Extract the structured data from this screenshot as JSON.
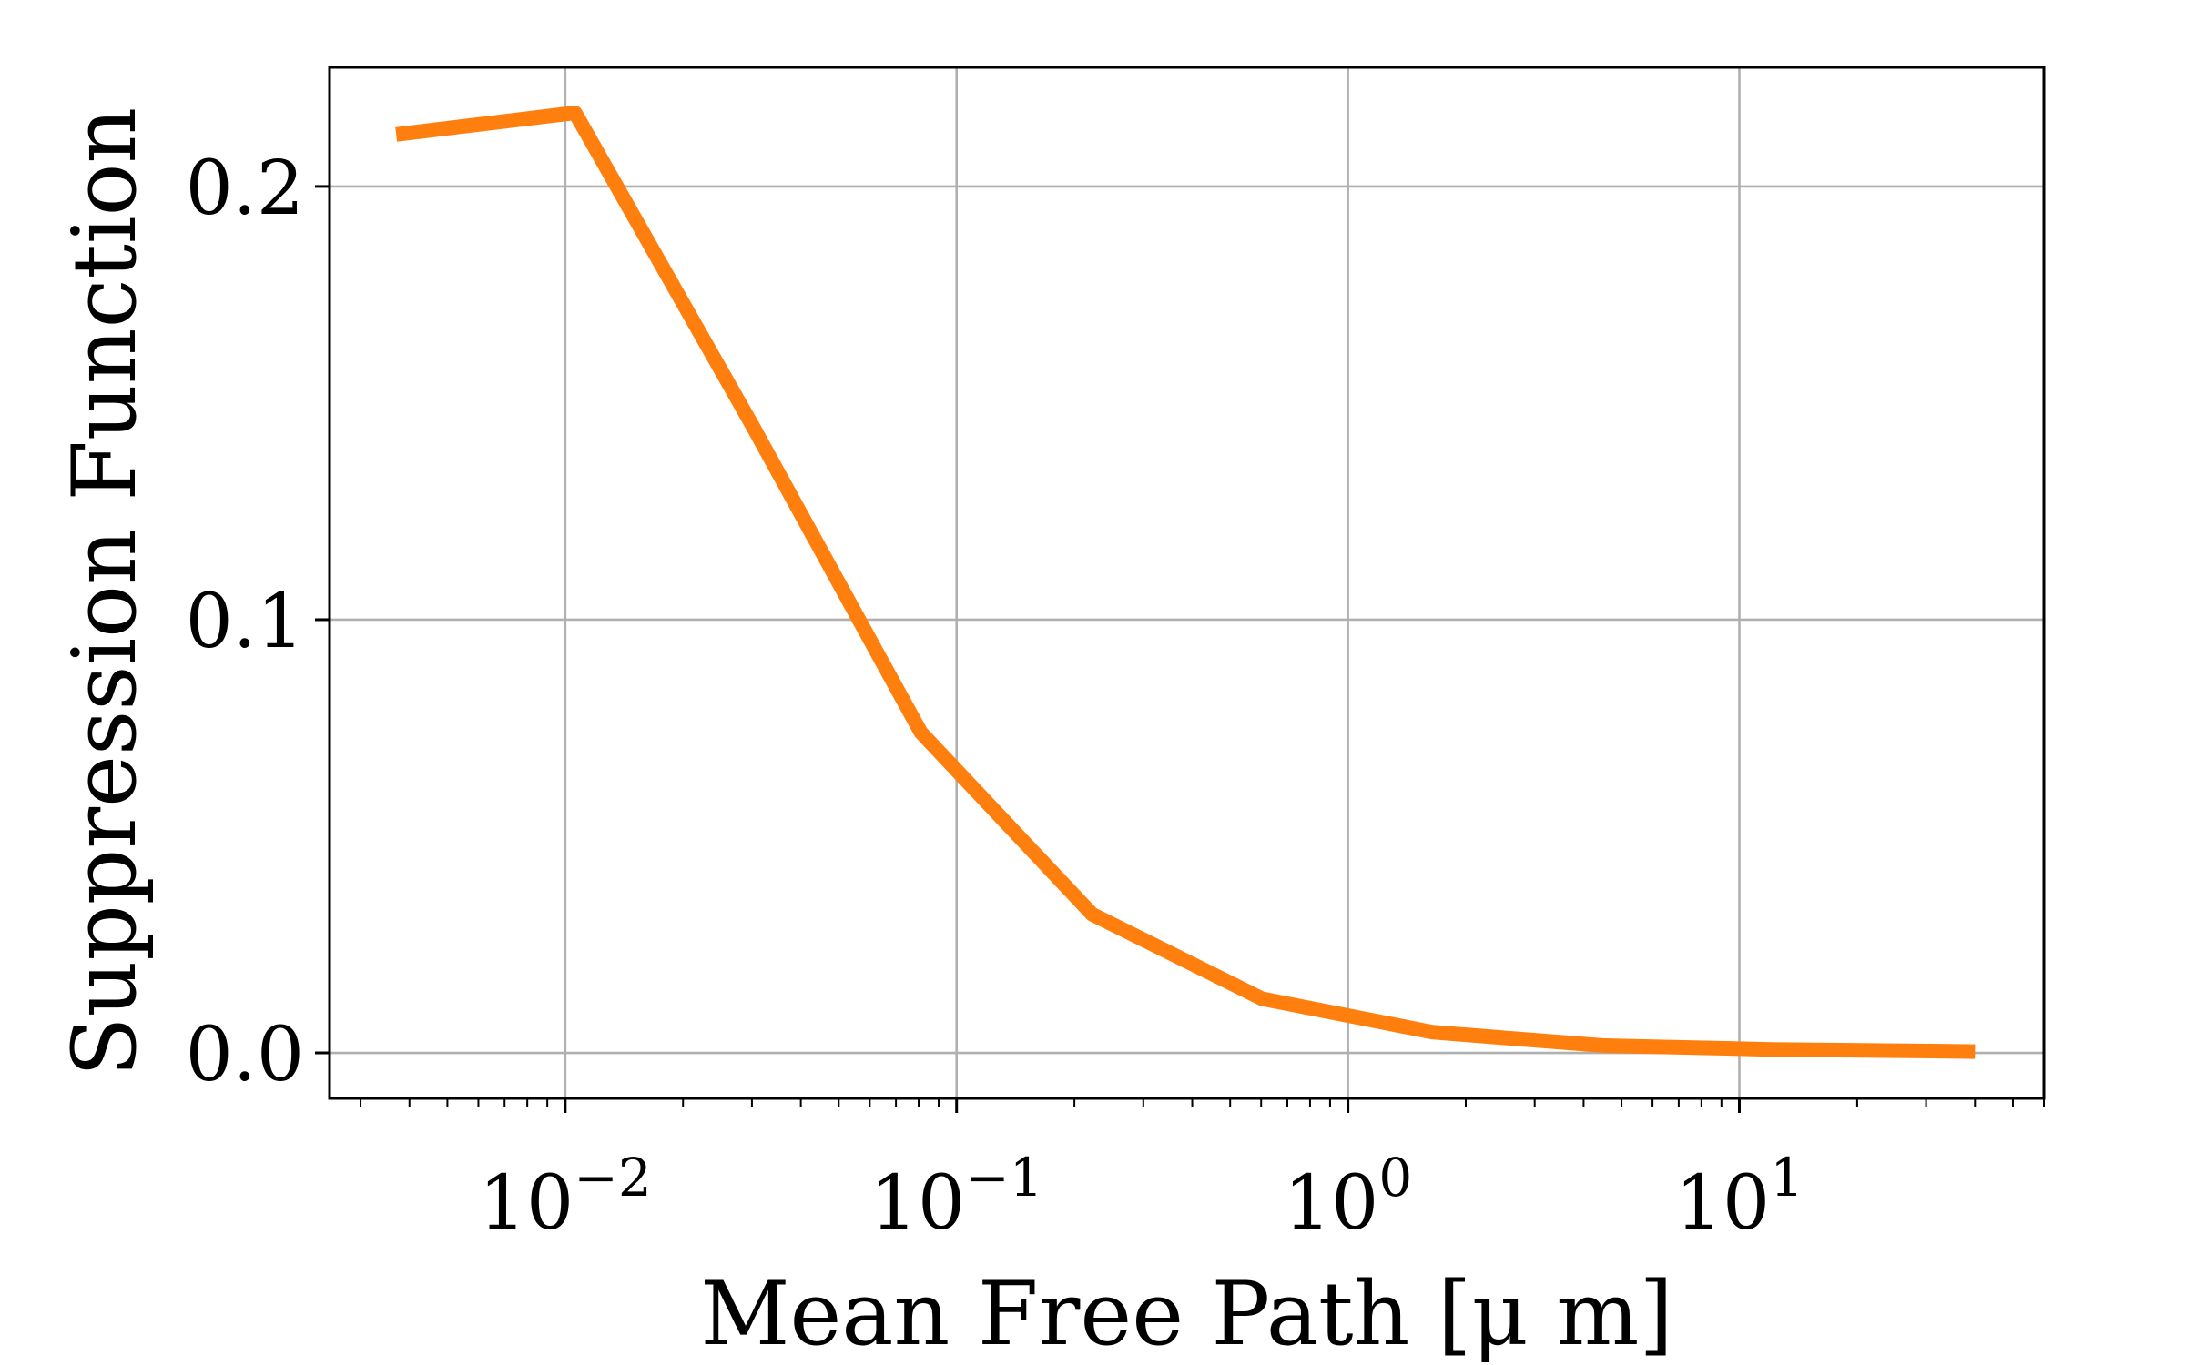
{
  "chart_data": {
    "type": "line",
    "xlabel": "Mean Free Path [μ m]",
    "ylabel": "Suppression Function",
    "xscale": "log",
    "xlim": [
      0.0025,
      60
    ],
    "ylim": [
      -0.0105,
      0.2275
    ],
    "grid": true,
    "series": [
      {
        "color": "#ff7f0e",
        "x": [
          0.0037,
          0.0106,
          0.03,
          0.081,
          0.222,
          0.603,
          1.64,
          4.46,
          12.1,
          33.0,
          40.0
        ],
        "y": [
          0.212,
          0.217,
          0.145,
          0.074,
          0.032,
          0.0125,
          0.0048,
          0.0017,
          0.0008,
          0.0004,
          0.0003
        ]
      }
    ],
    "x_ticks": [
      {
        "value": 0.01,
        "base": "10",
        "exp": "−2"
      },
      {
        "value": 0.1,
        "base": "10",
        "exp": "−1"
      },
      {
        "value": 1,
        "base": "10",
        "exp": "0"
      },
      {
        "value": 10,
        "base": "10",
        "exp": "1"
      }
    ],
    "y_ticks": [
      {
        "value": 0.0,
        "label": "0.0"
      },
      {
        "value": 0.1,
        "label": "0.1"
      },
      {
        "value": 0.2,
        "label": "0.2"
      }
    ]
  }
}
